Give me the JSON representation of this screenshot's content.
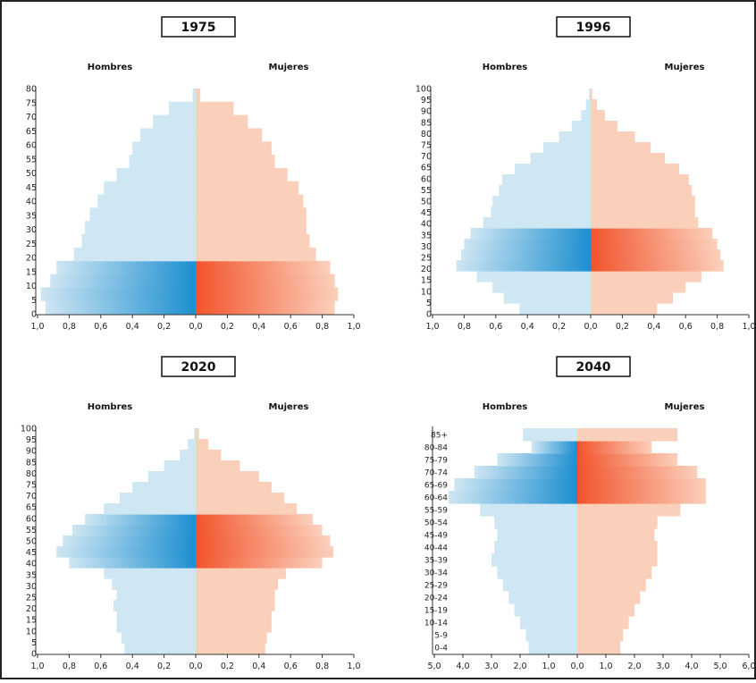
{
  "chart_data": [
    {
      "type": "bar",
      "title": "1975",
      "left_label": "Hombres",
      "right_label": "Mujeres",
      "xlim": [
        -1.0,
        1.0
      ],
      "x_ticks": [
        "1,0",
        "0,8",
        "0,6",
        "0,4",
        "0,2",
        "0,0",
        "0,2",
        "0,4",
        "0,6",
        "0,8",
        "1,0"
      ],
      "y_ticks": [
        "0",
        "5",
        "10",
        "15",
        "20",
        "25",
        "30",
        "35",
        "40",
        "45",
        "50",
        "55",
        "60",
        "65",
        "70",
        "75",
        "80"
      ],
      "y_range": [
        0,
        80
      ],
      "highlight_range": [
        0,
        17
      ],
      "colors": {
        "male_light": "#cfe6f3",
        "male_dark": "#1c8fd0",
        "female_light": "#fbd0bb",
        "female_dark": "#f2542c"
      },
      "age_groups": [
        0,
        5,
        10,
        15,
        20,
        25,
        30,
        35,
        40,
        45,
        50,
        55,
        60,
        65,
        70,
        75,
        80
      ],
      "series": [
        {
          "name": "Hombres",
          "values": [
            0.95,
            0.98,
            0.92,
            0.88,
            0.77,
            0.72,
            0.7,
            0.67,
            0.62,
            0.58,
            0.5,
            0.42,
            0.4,
            0.35,
            0.27,
            0.17,
            0.02
          ]
        },
        {
          "name": "Mujeres",
          "values": [
            0.88,
            0.9,
            0.88,
            0.85,
            0.76,
            0.72,
            0.7,
            0.7,
            0.68,
            0.65,
            0.58,
            0.5,
            0.48,
            0.42,
            0.33,
            0.24,
            0.03
          ]
        }
      ]
    },
    {
      "type": "bar",
      "title": "1996",
      "left_label": "Hombres",
      "right_label": "Mujeres",
      "xlim": [
        -1.0,
        1.0
      ],
      "x_ticks": [
        "1,0",
        "0,8",
        "0,6",
        "0,4",
        "0,2",
        "0,0",
        "0,2",
        "0,4",
        "0,6",
        "0,8",
        "1,0"
      ],
      "y_ticks": [
        "0",
        "5",
        "10",
        "15",
        "20",
        "25",
        "30",
        "35",
        "40",
        "45",
        "50",
        "55",
        "60",
        "65",
        "70",
        "75",
        "80",
        "85",
        "90",
        "95",
        "100"
      ],
      "y_range": [
        0,
        100
      ],
      "highlight_range": [
        20,
        40
      ],
      "colors": {
        "male_light": "#cfe6f3",
        "male_dark": "#1c8fd0",
        "female_light": "#fbd0bb",
        "female_dark": "#f2542c"
      },
      "age_groups": [
        0,
        5,
        10,
        15,
        20,
        25,
        30,
        35,
        40,
        45,
        50,
        55,
        60,
        65,
        70,
        75,
        80,
        85,
        90,
        95,
        100
      ],
      "series": [
        {
          "name": "Hombres",
          "values": [
            0.45,
            0.55,
            0.62,
            0.72,
            0.85,
            0.82,
            0.8,
            0.76,
            0.68,
            0.63,
            0.62,
            0.58,
            0.56,
            0.48,
            0.38,
            0.3,
            0.2,
            0.12,
            0.06,
            0.03,
            0.01
          ]
        },
        {
          "name": "Mujeres",
          "values": [
            0.42,
            0.52,
            0.6,
            0.7,
            0.84,
            0.82,
            0.8,
            0.77,
            0.68,
            0.66,
            0.66,
            0.64,
            0.62,
            0.56,
            0.47,
            0.38,
            0.28,
            0.17,
            0.09,
            0.04,
            0.01
          ]
        }
      ]
    },
    {
      "type": "bar",
      "title": "2020",
      "left_label": "Hombres",
      "right_label": "Mujeres",
      "xlim": [
        -1.0,
        1.0
      ],
      "x_ticks": [
        "1,0",
        "0,8",
        "0,6",
        "0,4",
        "0,2",
        "0,0",
        "0,2",
        "0,4",
        "0,6",
        "0,8",
        "1,0"
      ],
      "y_ticks": [
        "0",
        "5",
        "10",
        "15",
        "20",
        "25",
        "30",
        "35",
        "40",
        "45",
        "50",
        "55",
        "60",
        "65",
        "70",
        "75",
        "80",
        "85",
        "90",
        "95",
        "100"
      ],
      "y_range": [
        0,
        100
      ],
      "highlight_range": [
        40,
        62
      ],
      "colors": {
        "male_light": "#cfe6f3",
        "male_dark": "#1c8fd0",
        "female_light": "#fbd0bb",
        "female_dark": "#f2542c"
      },
      "age_groups": [
        0,
        5,
        10,
        15,
        20,
        25,
        30,
        35,
        40,
        45,
        50,
        55,
        60,
        65,
        70,
        75,
        80,
        85,
        90,
        95,
        100
      ],
      "series": [
        {
          "name": "Hombres",
          "values": [
            0.45,
            0.47,
            0.5,
            0.5,
            0.52,
            0.5,
            0.53,
            0.58,
            0.8,
            0.88,
            0.84,
            0.78,
            0.7,
            0.58,
            0.48,
            0.4,
            0.3,
            0.2,
            0.1,
            0.05,
            0.01
          ]
        },
        {
          "name": "Mujeres",
          "values": [
            0.44,
            0.45,
            0.48,
            0.48,
            0.5,
            0.5,
            0.52,
            0.57,
            0.8,
            0.87,
            0.85,
            0.8,
            0.74,
            0.64,
            0.56,
            0.48,
            0.4,
            0.28,
            0.16,
            0.08,
            0.02
          ]
        }
      ]
    },
    {
      "type": "bar",
      "title": "2040",
      "left_label": "Hombres",
      "right_label": "Mujeres",
      "xlim": [
        -5.0,
        6.0
      ],
      "x_ticks": [
        "5,0",
        "4,0",
        "3,0",
        "2,0",
        "1,0",
        "0,0",
        "1,0",
        "2,0",
        "3,0",
        "4,0",
        "5,0",
        "6,0"
      ],
      "y_ticks": [
        "0-4",
        "5-9",
        "10-14",
        "15-19",
        "20-24",
        "25-29",
        "30-34",
        "35-39",
        "40-44",
        "45-49",
        "50-54",
        "55-59",
        "60-64",
        "65-69",
        "70-74",
        "75-79",
        "80-84",
        "85+"
      ],
      "highlight_range": [
        12,
        17
      ],
      "colors": {
        "male_light": "#cfe6f3",
        "male_dark": "#1c8fd0",
        "female_light": "#fbd0bb",
        "female_dark": "#f2542c"
      },
      "age_groups": [
        "0-4",
        "5-9",
        "10-14",
        "15-19",
        "20-24",
        "25-29",
        "30-34",
        "35-39",
        "40-44",
        "45-49",
        "50-54",
        "55-59",
        "60-64",
        "65-69",
        "70-74",
        "75-79",
        "80-84",
        "85+"
      ],
      "series": [
        {
          "name": "Hombres",
          "values": [
            1.7,
            1.8,
            2.0,
            2.2,
            2.4,
            2.6,
            2.8,
            3.0,
            2.9,
            2.8,
            2.9,
            3.4,
            4.5,
            4.3,
            3.6,
            2.8,
            1.6,
            1.9
          ]
        },
        {
          "name": "Mujeres",
          "values": [
            1.5,
            1.6,
            1.8,
            2.0,
            2.2,
            2.4,
            2.6,
            2.8,
            2.8,
            2.7,
            2.8,
            3.6,
            4.5,
            4.5,
            4.2,
            3.5,
            2.6,
            3.5
          ]
        }
      ]
    }
  ]
}
